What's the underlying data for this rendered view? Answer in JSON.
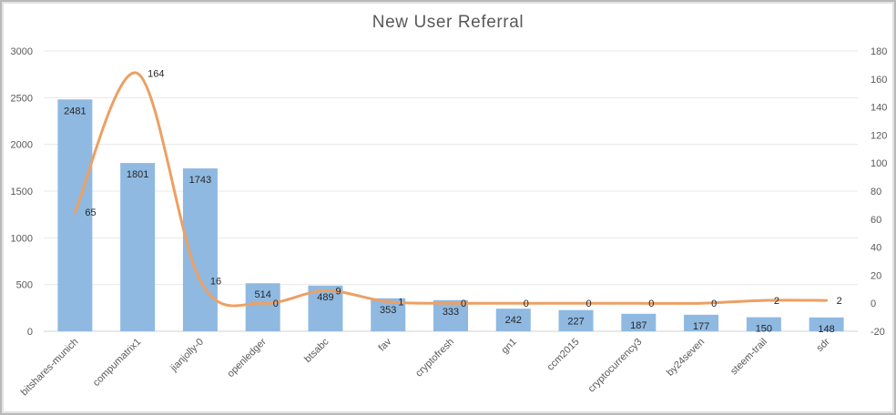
{
  "chart_data": {
    "type": "bar",
    "title": "New User Referral",
    "categories": [
      "bitshares-munich",
      "compumatrix1",
      "jianjolly-0",
      "openledger",
      "btsabc",
      "fav",
      "cryptofresh",
      "gn1",
      "ccm2015",
      "cryptocurrency3",
      "by24seven",
      "steem-trail",
      "sdr"
    ],
    "series": [
      {
        "type": "bar",
        "axis": "left",
        "values": [
          2481,
          1801,
          1743,
          514,
          489,
          353,
          333,
          242,
          227,
          187,
          177,
          150,
          148
        ]
      },
      {
        "type": "line",
        "axis": "right",
        "smooth": true,
        "values": [
          65,
          164,
          16,
          0,
          9,
          1,
          0,
          0,
          0,
          0,
          0,
          2,
          2
        ]
      }
    ],
    "ylim": [
      0,
      3000
    ],
    "yticks": [
      0,
      500,
      1000,
      1500,
      2000,
      2500,
      3000
    ],
    "y2lim": [
      -20,
      180
    ],
    "y2ticks": [
      -20,
      0,
      20,
      40,
      60,
      80,
      100,
      120,
      140,
      160,
      180
    ],
    "grid": true,
    "legend": "none",
    "colors": {
      "bar": "#8fb9e1",
      "line": "#eca064",
      "grid": "#e8e8e8",
      "axis": "#d0d0d0"
    }
  }
}
